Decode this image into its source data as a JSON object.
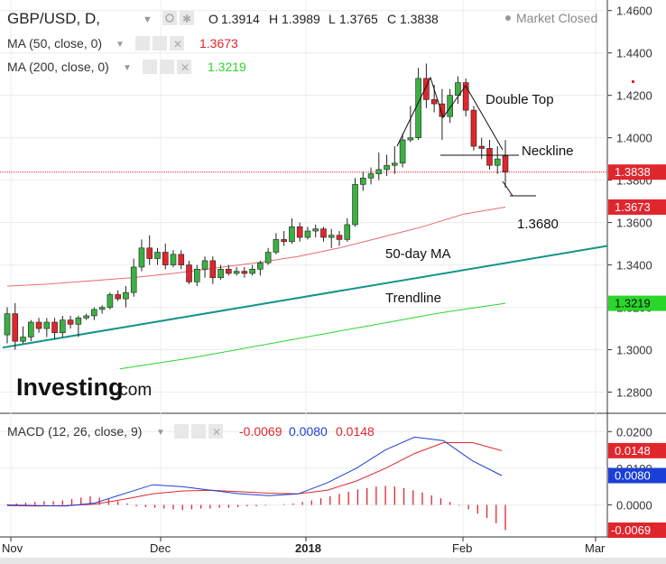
{
  "header": {
    "symbol": "GBP/USD, D,",
    "o_label": "O",
    "o_value": "1.3914",
    "h_label": "H",
    "h_value": "1.3989",
    "l_label": "L",
    "l_value": "1.3765",
    "c_label": "C",
    "c_value": "1.3838",
    "market_status": "Market Closed"
  },
  "indicators": [
    {
      "label": "MA (50, close, 0)",
      "value": "1.3673",
      "color": "#e0262d"
    },
    {
      "label": "MA (200, close, 0)",
      "value": "1.3219",
      "color": "#2bd62b"
    }
  ],
  "macd": {
    "label": "MACD (12, 26, close, 9)",
    "v1": "-0.0069",
    "v1_color": "#e0262d",
    "v2": "0.0080",
    "v2_color": "#1a3fd6",
    "v3": "0.0148",
    "v3_color": "#e0262d"
  },
  "logo": {
    "main": "Investing",
    "suffix": ".com"
  },
  "annotations": {
    "double_top": "Double Top",
    "neckline": "Neckline",
    "target": "1.3680",
    "ma50": "50-day MA",
    "trendline": "Trendline"
  },
  "price_tags": [
    {
      "value": "1.3838",
      "color": "#e0262d"
    },
    {
      "value": "1.3673",
      "color": "#e0262d"
    },
    {
      "value": "1.3219",
      "color": "#2bd62b"
    }
  ],
  "macd_tags": [
    {
      "value": "0.0148",
      "color": "#e0262d"
    },
    {
      "value": "0.0080",
      "color": "#1a3fd6"
    },
    {
      "value": "-0.0069",
      "color": "#e0262d"
    }
  ],
  "chart_data": {
    "type": "candlestick",
    "y_ticks": [
      "1.4600",
      "1.4400",
      "1.4200",
      "1.4000",
      "1.3800",
      "1.3600",
      "1.3400",
      "1.3200",
      "1.3000",
      "1.2800"
    ],
    "ylim": [
      1.27,
      1.465
    ],
    "x_ticks": [
      "Nov",
      "Dec",
      "2018",
      "Feb",
      "Mar"
    ],
    "macd_ticks": [
      "0.0200",
      "0.0100",
      "0.0000"
    ],
    "macd_ylim": [
      -0.0085,
      0.0245
    ],
    "colors": {
      "up": "#3cb043",
      "down": "#e0262d"
    },
    "candles": [
      {
        "o": 1.307,
        "h": 1.32,
        "l": 1.303,
        "c": 1.317
      },
      {
        "o": 1.317,
        "h": 1.322,
        "l": 1.3,
        "c": 1.304
      },
      {
        "o": 1.304,
        "h": 1.311,
        "l": 1.303,
        "c": 1.306
      },
      {
        "o": 1.306,
        "h": 1.314,
        "l": 1.304,
        "c": 1.313
      },
      {
        "o": 1.313,
        "h": 1.315,
        "l": 1.308,
        "c": 1.31
      },
      {
        "o": 1.31,
        "h": 1.315,
        "l": 1.306,
        "c": 1.313
      },
      {
        "o": 1.313,
        "h": 1.315,
        "l": 1.305,
        "c": 1.308
      },
      {
        "o": 1.308,
        "h": 1.316,
        "l": 1.306,
        "c": 1.314
      },
      {
        "o": 1.314,
        "h": 1.316,
        "l": 1.31,
        "c": 1.312
      },
      {
        "o": 1.312,
        "h": 1.316,
        "l": 1.306,
        "c": 1.315
      },
      {
        "o": 1.315,
        "h": 1.317,
        "l": 1.314,
        "c": 1.316
      },
      {
        "o": 1.316,
        "h": 1.32,
        "l": 1.314,
        "c": 1.319
      },
      {
        "o": 1.319,
        "h": 1.321,
        "l": 1.317,
        "c": 1.32
      },
      {
        "o": 1.32,
        "h": 1.327,
        "l": 1.319,
        "c": 1.326
      },
      {
        "o": 1.326,
        "h": 1.328,
        "l": 1.323,
        "c": 1.324
      },
      {
        "o": 1.324,
        "h": 1.33,
        "l": 1.32,
        "c": 1.327
      },
      {
        "o": 1.327,
        "h": 1.343,
        "l": 1.325,
        "c": 1.339
      },
      {
        "o": 1.339,
        "h": 1.352,
        "l": 1.337,
        "c": 1.348
      },
      {
        "o": 1.348,
        "h": 1.354,
        "l": 1.34,
        "c": 1.343
      },
      {
        "o": 1.343,
        "h": 1.348,
        "l": 1.34,
        "c": 1.346
      },
      {
        "o": 1.346,
        "h": 1.35,
        "l": 1.338,
        "c": 1.34
      },
      {
        "o": 1.34,
        "h": 1.347,
        "l": 1.339,
        "c": 1.345
      },
      {
        "o": 1.345,
        "h": 1.347,
        "l": 1.338,
        "c": 1.34
      },
      {
        "o": 1.34,
        "h": 1.342,
        "l": 1.331,
        "c": 1.332
      },
      {
        "o": 1.332,
        "h": 1.34,
        "l": 1.33,
        "c": 1.338
      },
      {
        "o": 1.338,
        "h": 1.344,
        "l": 1.334,
        "c": 1.342
      },
      {
        "o": 1.342,
        "h": 1.344,
        "l": 1.331,
        "c": 1.334
      },
      {
        "o": 1.334,
        "h": 1.34,
        "l": 1.333,
        "c": 1.338
      },
      {
        "o": 1.338,
        "h": 1.34,
        "l": 1.335,
        "c": 1.336
      },
      {
        "o": 1.336,
        "h": 1.339,
        "l": 1.335,
        "c": 1.337
      },
      {
        "o": 1.337,
        "h": 1.339,
        "l": 1.334,
        "c": 1.336
      },
      {
        "o": 1.336,
        "h": 1.34,
        "l": 1.335,
        "c": 1.338
      },
      {
        "o": 1.338,
        "h": 1.342,
        "l": 1.335,
        "c": 1.341
      },
      {
        "o": 1.341,
        "h": 1.348,
        "l": 1.34,
        "c": 1.346
      },
      {
        "o": 1.346,
        "h": 1.355,
        "l": 1.345,
        "c": 1.352
      },
      {
        "o": 1.352,
        "h": 1.356,
        "l": 1.349,
        "c": 1.351
      },
      {
        "o": 1.351,
        "h": 1.362,
        "l": 1.35,
        "c": 1.358
      },
      {
        "o": 1.358,
        "h": 1.36,
        "l": 1.351,
        "c": 1.353
      },
      {
        "o": 1.353,
        "h": 1.358,
        "l": 1.352,
        "c": 1.356
      },
      {
        "o": 1.356,
        "h": 1.359,
        "l": 1.353,
        "c": 1.357
      },
      {
        "o": 1.357,
        "h": 1.358,
        "l": 1.351,
        "c": 1.353
      },
      {
        "o": 1.353,
        "h": 1.357,
        "l": 1.348,
        "c": 1.354
      },
      {
        "o": 1.354,
        "h": 1.356,
        "l": 1.349,
        "c": 1.352
      },
      {
        "o": 1.352,
        "h": 1.362,
        "l": 1.351,
        "c": 1.359
      },
      {
        "o": 1.359,
        "h": 1.381,
        "l": 1.358,
        "c": 1.378
      },
      {
        "o": 1.378,
        "h": 1.384,
        "l": 1.375,
        "c": 1.381
      },
      {
        "o": 1.381,
        "h": 1.386,
        "l": 1.378,
        "c": 1.383
      },
      {
        "o": 1.383,
        "h": 1.393,
        "l": 1.38,
        "c": 1.385
      },
      {
        "o": 1.385,
        "h": 1.392,
        "l": 1.382,
        "c": 1.387
      },
      {
        "o": 1.387,
        "h": 1.396,
        "l": 1.383,
        "c": 1.388
      },
      {
        "o": 1.388,
        "h": 1.402,
        "l": 1.386,
        "c": 1.399
      },
      {
        "o": 1.399,
        "h": 1.415,
        "l": 1.398,
        "c": 1.4
      },
      {
        "o": 1.4,
        "h": 1.433,
        "l": 1.399,
        "c": 1.428
      },
      {
        "o": 1.428,
        "h": 1.435,
        "l": 1.414,
        "c": 1.418
      },
      {
        "o": 1.418,
        "h": 1.425,
        "l": 1.412,
        "c": 1.416
      },
      {
        "o": 1.416,
        "h": 1.423,
        "l": 1.399,
        "c": 1.41
      },
      {
        "o": 1.41,
        "h": 1.423,
        "l": 1.407,
        "c": 1.42
      },
      {
        "o": 1.42,
        "h": 1.429,
        "l": 1.416,
        "c": 1.426
      },
      {
        "o": 1.426,
        "h": 1.428,
        "l": 1.41,
        "c": 1.413
      },
      {
        "o": 1.413,
        "h": 1.415,
        "l": 1.394,
        "c": 1.396
      },
      {
        "o": 1.396,
        "h": 1.4,
        "l": 1.39,
        "c": 1.395
      },
      {
        "o": 1.395,
        "h": 1.399,
        "l": 1.385,
        "c": 1.387
      },
      {
        "o": 1.387,
        "h": 1.396,
        "l": 1.383,
        "c": 1.39
      },
      {
        "o": 1.3914,
        "h": 1.3989,
        "l": 1.3765,
        "c": 1.3838
      }
    ],
    "ma50": [
      1.33,
      1.331,
      1.3325,
      1.334,
      1.336,
      1.3385,
      1.341,
      1.344,
      1.348,
      1.353,
      1.358,
      1.364,
      1.3673
    ],
    "ma200": [
      1.291,
      1.2935,
      1.296,
      1.299,
      1.302,
      1.305,
      1.308,
      1.311,
      1.314,
      1.317,
      1.3195,
      1.3219
    ],
    "trendline": [
      1.301,
      1.349
    ],
    "macd_line": [
      0.0,
      -0.0002,
      -0.0003,
      0.0005,
      0.003,
      0.0055,
      0.005,
      0.004,
      0.003,
      0.0025,
      0.003,
      0.006,
      0.01,
      0.015,
      0.0185,
      0.0175,
      0.012,
      0.008
    ],
    "signal_line": [
      -0.0002,
      -0.0003,
      -0.0002,
      0.0002,
      0.0015,
      0.003,
      0.0038,
      0.004,
      0.0036,
      0.0032,
      0.003,
      0.004,
      0.0065,
      0.01,
      0.014,
      0.017,
      0.017,
      0.0148
    ],
    "histogram": [
      0.0002,
      0.0004,
      0.0006,
      0.0008,
      0.001,
      0.001,
      0.0012,
      0.0016,
      0.002,
      0.0024,
      0.002,
      0.0016,
      0.001,
      0.0004,
      -0.0004,
      -0.0006,
      -0.0008,
      -0.001,
      -0.0012,
      -0.0014,
      -0.0012,
      -0.001,
      -0.001,
      -0.0008,
      -0.0008,
      -0.0006,
      -0.0004,
      -0.0004,
      -0.0002,
      0.0,
      0.0002,
      0.0004,
      0.0008,
      0.0012,
      0.0018,
      0.0024,
      0.003,
      0.0036,
      0.0042,
      0.0046,
      0.005,
      0.0052,
      0.005,
      0.0046,
      0.004,
      0.0034,
      0.0026,
      0.0018,
      0.0008,
      -0.0002,
      -0.0012,
      -0.0024,
      -0.0036,
      -0.005,
      -0.0069
    ]
  }
}
